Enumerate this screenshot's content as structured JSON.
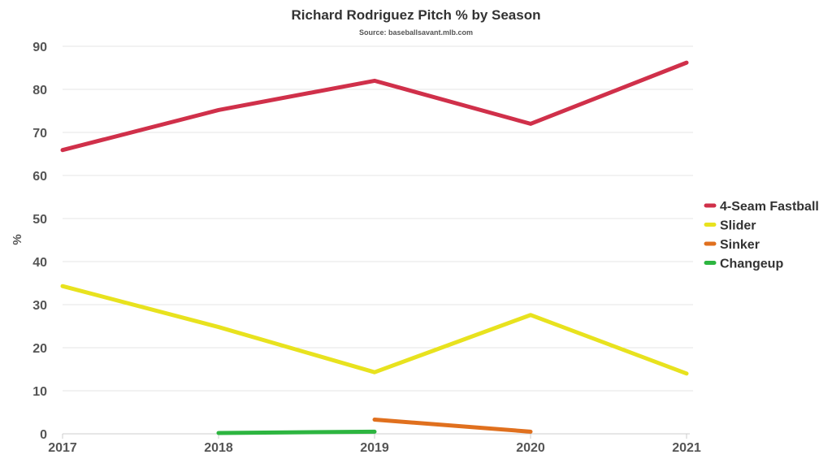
{
  "chart_data": {
    "type": "line",
    "title": "Richard Rodriguez Pitch % by Season",
    "subtitle": "Source: baseballsavant.mlb.com",
    "xlabel": "",
    "ylabel": "%",
    "x": [
      2017,
      2018,
      2019,
      2020,
      2021
    ],
    "x_tick_labels": [
      "2017",
      "2018",
      "2019",
      "2020",
      "2021"
    ],
    "ylim": [
      0,
      90
    ],
    "y_ticks": [
      0,
      10,
      20,
      30,
      40,
      50,
      60,
      70,
      80,
      90
    ],
    "grid": true,
    "legend_position": "right",
    "series": [
      {
        "name": "4-Seam Fastball",
        "color": "#d0304a",
        "values": [
          65.9,
          75.2,
          82.0,
          72.0,
          86.2
        ]
      },
      {
        "name": "Slider",
        "color": "#e8e21e",
        "values": [
          34.3,
          24.8,
          14.3,
          27.6,
          14.0
        ]
      },
      {
        "name": "Sinker",
        "color": "#e0701e",
        "values": [
          null,
          null,
          3.3,
          0.5,
          null
        ]
      },
      {
        "name": "Changeup",
        "color": "#2db540",
        "values": [
          null,
          0.2,
          0.5,
          null,
          null
        ]
      }
    ]
  }
}
